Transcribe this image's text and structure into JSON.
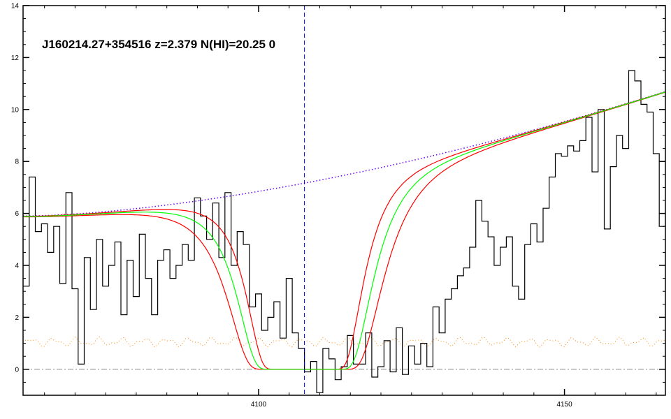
{
  "chart_data": {
    "type": "line",
    "title": "J160214.27+354516 z=2.379 N(HI)=20.25 0",
    "xlabel": "",
    "ylabel": "",
    "xlim": [
      4061.5,
      4166.5
    ],
    "ylim": [
      -1.0,
      14.0
    ],
    "x_ticks": [
      4100,
      4150
    ],
    "y_ticks": [
      0,
      2,
      4,
      6,
      8,
      10,
      12,
      14
    ],
    "grid": false,
    "absorber_center": 4107.5,
    "colors": {
      "flux": "#000000",
      "model": "#00ff00",
      "model_bounds": "#ff0000",
      "continuum": "#6600ff",
      "error": "#ff8800",
      "zero_line": "#888888",
      "center_line": "#0000cc"
    },
    "series": [
      {
        "x": [
          4062.0,
          4063.0,
          4064.0,
          4065.0,
          4066.0,
          4067.0,
          4068.0,
          4069.0,
          4070.0,
          4071.0,
          4072.0,
          4073.0,
          4074.0,
          4075.0,
          4076.0,
          4077.0,
          4078.0,
          4079.0,
          4080.0,
          4081.0,
          4082.0,
          4083.0,
          4084.0,
          4085.0,
          4086.0,
          4087.0,
          4088.0,
          4089.0,
          4090.0,
          4091.0,
          4092.0,
          4093.0,
          4094.0,
          4095.0,
          4096.0,
          4097.0,
          4098.0,
          4099.0,
          4100.0,
          4101.0,
          4102.0,
          4103.0,
          4104.0,
          4105.0,
          4106.0,
          4107.0,
          4108.0,
          4109.0,
          4110.0,
          4111.0,
          4112.0,
          4113.0,
          4114.0,
          4115.0,
          4116.0,
          4117.0,
          4118.0,
          4119.0,
          4120.0,
          4121.0,
          4122.0,
          4123.0,
          4124.0,
          4125.0,
          4126.0,
          4127.0,
          4128.0,
          4129.0,
          4130.0,
          4131.0,
          4132.0,
          4133.0,
          4134.0,
          4135.0,
          4136.0,
          4137.0,
          4138.0,
          4139.0,
          4140.0,
          4141.0,
          4142.0,
          4143.0,
          4144.0,
          4145.0,
          4146.0,
          4147.0,
          4148.0,
          4149.0,
          4150.0,
          4151.0,
          4152.0,
          4153.0,
          4154.0,
          4155.0,
          4156.0,
          4157.0,
          4158.0,
          4159.0,
          4160.0,
          4161.0,
          4162.0,
          4163.0,
          4164.0,
          4165.0,
          4166.0
        ],
        "y": [
          3.2,
          7.4,
          5.3,
          5.6,
          4.5,
          5.5,
          3.3,
          6.8,
          3.1,
          0.2,
          4.3,
          2.3,
          5.0,
          3.2,
          4.0,
          4.9,
          2.1,
          4.2,
          2.8,
          5.2,
          3.5,
          2.1,
          4.2,
          4.6,
          3.5,
          4.0,
          4.8,
          4.2,
          6.6,
          5.9,
          5.0,
          6.4,
          4.3,
          6.8,
          4.0,
          5.3,
          4.8,
          2.4,
          2.9,
          1.5,
          2.0,
          2.6,
          1.2,
          3.5,
          1.4,
          0.8,
          -0.1,
          0.3,
          -0.9,
          0.8,
          0.4,
          -0.4,
          0.1,
          1.3,
          0.2,
          0.2,
          1.4,
          -0.3,
          0.1,
          1.1,
          -0.1,
          1.6,
          -0.2,
          0.9,
          0.2,
          1.0,
          0.1,
          2.4,
          1.4,
          2.7,
          3.1,
          3.6,
          3.9,
          4.7,
          6.5,
          5.7,
          5.1,
          4.0,
          4.7,
          5.1,
          3.2,
          2.7,
          4.8,
          5.6,
          4.9,
          6.2,
          7.4,
          8.3,
          8.2,
          8.6,
          8.4,
          8.8,
          9.7,
          7.6,
          10.0,
          5.4,
          7.8,
          9.0,
          8.5,
          11.5,
          11.1,
          10.2,
          9.9,
          8.3,
          5.5
        ]
      }
    ]
  }
}
